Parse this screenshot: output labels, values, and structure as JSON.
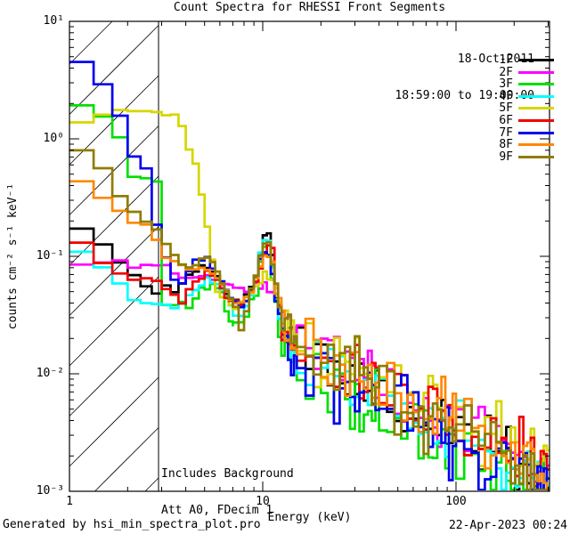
{
  "chart_data": {
    "type": "line",
    "style": "step-histogram on log-log axes, 9 overlaid count spectra with diagonal-hatched excluded band at low energy",
    "title": "Count Spectra for RHESSI Front Segments",
    "xlabel": "Energy (keV)",
    "ylabel": "counts cm⁻² s⁻¹ keV⁻¹",
    "xlim": [
      1,
      305
    ],
    "ylim": [
      0.001,
      10
    ],
    "x_scale": "log",
    "y_scale": "log",
    "grid": false,
    "x_major_ticks": [
      1,
      10,
      100
    ],
    "x_major_tick_labels": [
      "1",
      "10",
      "100"
    ],
    "y_major_tick_exponents": [
      1,
      0,
      -1,
      -2,
      -3
    ],
    "y_major_tick_labels": [
      "10¹",
      "10⁰",
      "10⁻¹",
      "10⁻²",
      "10⁻³"
    ],
    "legend": {
      "position": "top-right",
      "date_line": "18-Oct-2011",
      "time_line": "18:59:00 to 19:00:00"
    },
    "annotations": [
      "Includes Background",
      "Att A0, FDecim 1"
    ],
    "excluded_band": {
      "e_min": 1.0,
      "e_max": 2.89,
      "style": "diagonal-hatch"
    },
    "bin_segments": [
      [
        1,
        7,
        0.3333
      ],
      [
        7,
        15,
        0.5
      ],
      [
        15,
        40,
        1.6667
      ],
      [
        40,
        100,
        4
      ],
      [
        100,
        305,
        10.25
      ]
    ],
    "series": [
      {
        "label": "1F",
        "color": "#000000",
        "noise_seed": 11,
        "noise_sigma": 0.13,
        "points": [
          [
            1.0,
            0.215
          ],
          [
            1.26,
            0.147
          ],
          [
            1.5,
            0.12
          ],
          [
            1.87,
            0.088
          ],
          [
            2.15,
            0.068
          ],
          [
            2.5,
            0.054
          ],
          [
            2.9,
            0.052
          ],
          [
            3.2,
            0.058
          ],
          [
            3.6,
            0.048
          ],
          [
            4.2,
            0.07
          ],
          [
            4.8,
            0.085
          ],
          [
            5.6,
            0.072
          ],
          [
            6.4,
            0.05
          ],
          [
            7.3,
            0.04
          ],
          [
            8.3,
            0.046
          ],
          [
            9.3,
            0.072
          ],
          [
            10.0,
            0.135
          ],
          [
            10.6,
            0.168
          ],
          [
            11.2,
            0.1
          ],
          [
            12.1,
            0.034
          ],
          [
            13.2,
            0.021
          ],
          [
            20,
            0.0125
          ],
          [
            30,
            0.0085
          ],
          [
            50,
            0.0056
          ],
          [
            100,
            0.0033
          ],
          [
            200,
            0.0018
          ],
          [
            300,
            0.0011
          ]
        ]
      },
      {
        "label": "2F",
        "color": "#ff00ff",
        "noise_seed": 22,
        "noise_sigma": 0.11,
        "points": [
          [
            1.0,
            0.088
          ],
          [
            2.6,
            0.09
          ],
          [
            3.6,
            0.072
          ],
          [
            4.5,
            0.068
          ],
          [
            5.0,
            0.076
          ],
          [
            6.0,
            0.063
          ],
          [
            7.0,
            0.056
          ],
          [
            8.0,
            0.05
          ],
          [
            9.0,
            0.055
          ],
          [
            10.3,
            0.06
          ],
          [
            11.3,
            0.049
          ],
          [
            12.3,
            0.035
          ],
          [
            13.5,
            0.028
          ],
          [
            16,
            0.022
          ],
          [
            20,
            0.016
          ],
          [
            26,
            0.0125
          ],
          [
            35,
            0.0095
          ],
          [
            50,
            0.007
          ],
          [
            100,
            0.004
          ],
          [
            200,
            0.0021
          ],
          [
            300,
            0.0013
          ]
        ]
      },
      {
        "label": "3F",
        "color": "#00e000",
        "noise_seed": 33,
        "noise_sigma": 0.17,
        "points": [
          [
            1.0,
            1.85
          ],
          [
            1.3,
            1.86
          ],
          [
            1.5,
            1.57
          ],
          [
            1.9,
            0.93
          ],
          [
            2.15,
            0.45
          ],
          [
            2.85,
            0.44
          ],
          [
            3.0,
            0.156
          ],
          [
            3.2,
            0.029
          ],
          [
            3.6,
            0.042
          ],
          [
            4.2,
            0.035
          ],
          [
            4.8,
            0.05
          ],
          [
            5.5,
            0.058
          ],
          [
            6.2,
            0.045
          ],
          [
            7.0,
            0.026
          ],
          [
            7.6,
            0.024
          ],
          [
            8.4,
            0.032
          ],
          [
            9.2,
            0.05
          ],
          [
            10.0,
            0.105
          ],
          [
            10.7,
            0.128
          ],
          [
            11.4,
            0.06
          ],
          [
            12.3,
            0.02
          ],
          [
            13.5,
            0.014
          ],
          [
            20,
            0.0085
          ],
          [
            30,
            0.0058
          ],
          [
            50,
            0.004
          ],
          [
            100,
            0.0023
          ],
          [
            200,
            0.0013
          ],
          [
            300,
            0.00085
          ]
        ]
      },
      {
        "label": "4F",
        "color": "#00ffff",
        "noise_seed": 44,
        "noise_sigma": 0.15,
        "points": [
          [
            1.0,
            0.143
          ],
          [
            1.3,
            0.094
          ],
          [
            1.6,
            0.07
          ],
          [
            1.97,
            0.053
          ],
          [
            2.43,
            0.035
          ],
          [
            2.9,
            0.042
          ],
          [
            3.4,
            0.036
          ],
          [
            4.0,
            0.04
          ],
          [
            4.6,
            0.058
          ],
          [
            5.3,
            0.066
          ],
          [
            6.1,
            0.052
          ],
          [
            7.0,
            0.035
          ],
          [
            8.0,
            0.031
          ],
          [
            9.0,
            0.052
          ],
          [
            10.0,
            0.13
          ],
          [
            10.6,
            0.158
          ],
          [
            11.3,
            0.083
          ],
          [
            12.2,
            0.027
          ],
          [
            13.5,
            0.017
          ],
          [
            20,
            0.0115
          ],
          [
            30,
            0.0078
          ],
          [
            50,
            0.0052
          ],
          [
            100,
            0.003
          ],
          [
            200,
            0.0016
          ],
          [
            300,
            0.00105
          ]
        ]
      },
      {
        "label": "5F",
        "color": "#d6d600",
        "noise_seed": 55,
        "noise_sigma": 0.13,
        "points": [
          [
            1.0,
            1.12
          ],
          [
            1.3,
            1.5
          ],
          [
            1.6,
            1.78
          ],
          [
            2.9,
            1.8
          ],
          [
            3.3,
            1.68
          ],
          [
            3.7,
            1.47
          ],
          [
            4.0,
            1.12
          ],
          [
            4.3,
            0.76
          ],
          [
            4.6,
            0.53
          ],
          [
            5.0,
            0.25
          ],
          [
            5.4,
            0.11
          ],
          [
            5.8,
            0.048
          ],
          [
            6.5,
            0.042
          ],
          [
            7.5,
            0.038
          ],
          [
            8.5,
            0.046
          ],
          [
            9.5,
            0.058
          ],
          [
            10.3,
            0.069
          ],
          [
            10.9,
            0.073
          ],
          [
            11.6,
            0.052
          ],
          [
            12.6,
            0.031
          ],
          [
            14,
            0.023
          ],
          [
            20,
            0.0155
          ],
          [
            30,
            0.0105
          ],
          [
            50,
            0.0077
          ],
          [
            100,
            0.0046
          ],
          [
            200,
            0.0026
          ],
          [
            300,
            0.0016
          ]
        ]
      },
      {
        "label": "6F",
        "color": "#f20000",
        "noise_seed": 66,
        "noise_sigma": 0.13,
        "points": [
          [
            1.0,
            0.18
          ],
          [
            1.14,
            0.148
          ],
          [
            1.3,
            0.12
          ],
          [
            1.5,
            0.081
          ],
          [
            2.0,
            0.076
          ],
          [
            2.35,
            0.065
          ],
          [
            2.9,
            0.057
          ],
          [
            3.3,
            0.049
          ],
          [
            3.8,
            0.043
          ],
          [
            4.4,
            0.062
          ],
          [
            5.0,
            0.073
          ],
          [
            5.8,
            0.062
          ],
          [
            6.6,
            0.044
          ],
          [
            7.5,
            0.036
          ],
          [
            8.5,
            0.044
          ],
          [
            9.5,
            0.072
          ],
          [
            10.3,
            0.118
          ],
          [
            10.9,
            0.133
          ],
          [
            11.6,
            0.075
          ],
          [
            12.6,
            0.028
          ],
          [
            14,
            0.02
          ],
          [
            20,
            0.0145
          ],
          [
            30,
            0.0098
          ],
          [
            50,
            0.0067
          ],
          [
            100,
            0.0041
          ],
          [
            200,
            0.0023
          ],
          [
            300,
            0.0014
          ]
        ]
      },
      {
        "label": "7F",
        "color": "#0000f0",
        "noise_seed": 77,
        "noise_sigma": 0.16,
        "points": [
          [
            1.0,
            5.1
          ],
          [
            1.26,
            4.4
          ],
          [
            1.48,
            3.0
          ],
          [
            1.87,
            1.43
          ],
          [
            2.15,
            0.7
          ],
          [
            2.57,
            0.53
          ],
          [
            2.9,
            0.163
          ],
          [
            3.3,
            0.072
          ],
          [
            3.9,
            0.063
          ],
          [
            4.5,
            0.095
          ],
          [
            5.2,
            0.096
          ],
          [
            6.0,
            0.063
          ],
          [
            7.0,
            0.042
          ],
          [
            8.0,
            0.037
          ],
          [
            9.0,
            0.056
          ],
          [
            10.0,
            0.112
          ],
          [
            10.6,
            0.131
          ],
          [
            11.3,
            0.076
          ],
          [
            12.2,
            0.028
          ],
          [
            13.5,
            0.017
          ],
          [
            20,
            0.0105
          ],
          [
            30,
            0.0072
          ],
          [
            50,
            0.0047
          ],
          [
            100,
            0.0027
          ],
          [
            200,
            0.0015
          ],
          [
            300,
            0.00095
          ]
        ]
      },
      {
        "label": "8F",
        "color": "#ff8800",
        "noise_seed": 88,
        "noise_sigma": 0.14,
        "points": [
          [
            1.0,
            0.47
          ],
          [
            1.26,
            0.39
          ],
          [
            1.48,
            0.335
          ],
          [
            1.87,
            0.245
          ],
          [
            2.24,
            0.185
          ],
          [
            2.6,
            0.185
          ],
          [
            2.9,
            0.125
          ],
          [
            3.3,
            0.1
          ],
          [
            3.8,
            0.082
          ],
          [
            4.4,
            0.072
          ],
          [
            5.0,
            0.082
          ],
          [
            5.7,
            0.07
          ],
          [
            6.5,
            0.048
          ],
          [
            7.4,
            0.037
          ],
          [
            8.4,
            0.047
          ],
          [
            9.4,
            0.07
          ],
          [
            10.2,
            0.1
          ],
          [
            10.8,
            0.112
          ],
          [
            11.5,
            0.068
          ],
          [
            12.5,
            0.028
          ],
          [
            14,
            0.02
          ],
          [
            20,
            0.0135
          ],
          [
            30,
            0.0092
          ],
          [
            50,
            0.0063
          ],
          [
            100,
            0.0038
          ],
          [
            200,
            0.0021
          ],
          [
            300,
            0.0013
          ]
        ]
      },
      {
        "label": "9F",
        "color": "#8e7d00",
        "noise_seed": 99,
        "noise_sigma": 0.14,
        "points": [
          [
            1.0,
            0.88
          ],
          [
            1.26,
            0.74
          ],
          [
            1.6,
            0.5
          ],
          [
            1.87,
            0.335
          ],
          [
            2.24,
            0.23
          ],
          [
            2.9,
            0.165
          ],
          [
            3.3,
            0.115
          ],
          [
            3.7,
            0.085
          ],
          [
            4.3,
            0.078
          ],
          [
            4.9,
            0.1
          ],
          [
            5.6,
            0.085
          ],
          [
            6.4,
            0.052
          ],
          [
            7.3,
            0.036
          ],
          [
            7.8,
            0.022
          ],
          [
            8.4,
            0.042
          ],
          [
            9.3,
            0.075
          ],
          [
            10.1,
            0.12
          ],
          [
            10.7,
            0.135
          ],
          [
            11.4,
            0.082
          ],
          [
            12.4,
            0.03
          ],
          [
            14,
            0.021
          ],
          [
            20,
            0.0135
          ],
          [
            30,
            0.0092
          ],
          [
            50,
            0.006
          ],
          [
            100,
            0.0035
          ],
          [
            200,
            0.0019
          ],
          [
            300,
            0.0012
          ]
        ]
      }
    ]
  },
  "footer": {
    "left": "Generated by hsi_min_spectra_plot.pro",
    "right": "22-Apr-2023 00:24"
  }
}
